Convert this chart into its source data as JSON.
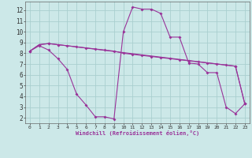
{
  "bg_color": "#cce8e8",
  "line_color": "#993399",
  "grid_color": "#aacfcf",
  "xlabel": "Windchill (Refroidissement éolien,°C)",
  "xlim": [
    -0.5,
    23.5
  ],
  "ylim": [
    1.5,
    12.8
  ],
  "yticks": [
    2,
    3,
    4,
    5,
    6,
    7,
    8,
    9,
    10,
    11,
    12
  ],
  "xticks": [
    0,
    1,
    2,
    3,
    4,
    5,
    6,
    7,
    8,
    9,
    10,
    11,
    12,
    13,
    14,
    15,
    16,
    17,
    18,
    19,
    20,
    21,
    22,
    23
  ],
  "series1_x": [
    0,
    1,
    2,
    3,
    4,
    5,
    6,
    7,
    8,
    9,
    10,
    11,
    12,
    13,
    14,
    15,
    16,
    17,
    18,
    19,
    20,
    21,
    22,
    23
  ],
  "series1_y": [
    8.2,
    8.8,
    8.9,
    8.8,
    8.7,
    8.6,
    8.5,
    8.4,
    8.3,
    8.2,
    8.0,
    7.9,
    7.8,
    7.7,
    7.6,
    7.5,
    7.4,
    7.3,
    7.2,
    7.1,
    7.0,
    6.9,
    6.8,
    3.3
  ],
  "series2_x": [
    0,
    1,
    2,
    3,
    4,
    5,
    6,
    7,
    8,
    9,
    10,
    11,
    12,
    13,
    14,
    15,
    16,
    17,
    18,
    19,
    20,
    21,
    22,
    23
  ],
  "series2_y": [
    8.2,
    8.7,
    8.3,
    7.5,
    6.5,
    4.2,
    3.2,
    2.1,
    2.1,
    1.9,
    10.0,
    12.3,
    12.1,
    12.1,
    11.7,
    9.5,
    9.5,
    7.1,
    7.0,
    6.2,
    6.2,
    3.0,
    2.4,
    3.3
  ],
  "series3_x": [
    0,
    1,
    2,
    3,
    22,
    23
  ],
  "series3_y": [
    8.2,
    8.8,
    8.9,
    8.8,
    6.8,
    3.3
  ]
}
